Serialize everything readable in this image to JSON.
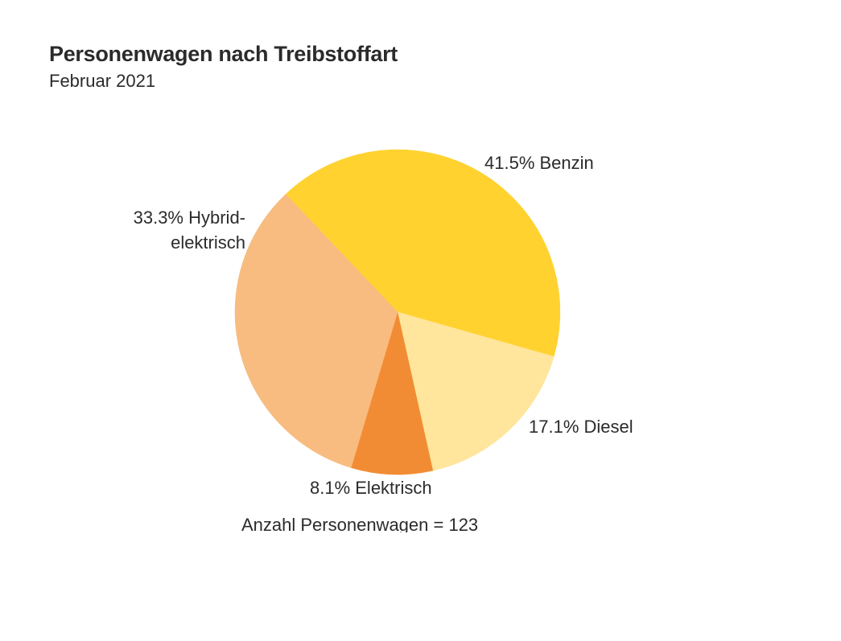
{
  "header": {
    "title": "Personenwagen nach Treibstoffart",
    "subtitle": "Februar 2021"
  },
  "footnote": "Anzahl Personenwagen = 123",
  "chart_data": {
    "type": "pie",
    "title": "Personenwagen nach Treibstoffart",
    "subtitle": "Februar 2021",
    "start_angle_deg_clockwise_from_top": 316.5,
    "direction": "clockwise",
    "slices": [
      {
        "key": "benzin",
        "label": "Benzin",
        "value": 41.5,
        "value_label": "41.5%",
        "color": "#FFD230"
      },
      {
        "key": "diesel",
        "label": "Diesel",
        "value": 17.1,
        "value_label": "17.1%",
        "color": "#FFE69C"
      },
      {
        "key": "elektrisch",
        "label": "Elektrisch",
        "value": 8.1,
        "value_label": "8.1%",
        "color": "#F28C34"
      },
      {
        "key": "hybrid",
        "label": "Hybrid-\nelektrisch",
        "value": 33.3,
        "value_label": "33.3%",
        "color": "#F8BC80"
      }
    ],
    "total_count": 123,
    "annotation": "Anzahl Personenwagen = 123",
    "legend": "none (labels beside slices)"
  }
}
